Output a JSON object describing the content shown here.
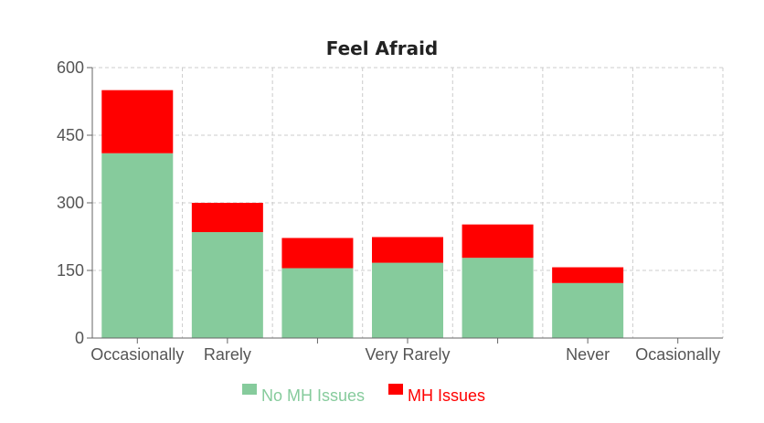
{
  "chart_data": {
    "type": "bar",
    "stacked": true,
    "title": "Feel Afraid",
    "xlabel": "",
    "ylabel": "",
    "categories": [
      "Occasionally",
      "Rarely",
      "",
      "Very Rarely",
      "",
      "Never",
      "Ocasionally"
    ],
    "series": [
      {
        "name": "No MH Issues",
        "color": "#86cb9c",
        "values": [
          410,
          235,
          155,
          167,
          178,
          122,
          0
        ]
      },
      {
        "name": "MH Issues",
        "color": "#ff0000",
        "values": [
          140,
          65,
          67,
          57,
          74,
          35,
          0
        ]
      }
    ],
    "ylim": [
      0,
      600
    ],
    "yticks": [
      0,
      150,
      300,
      450,
      600
    ],
    "grid": true,
    "legend": "bottom"
  }
}
